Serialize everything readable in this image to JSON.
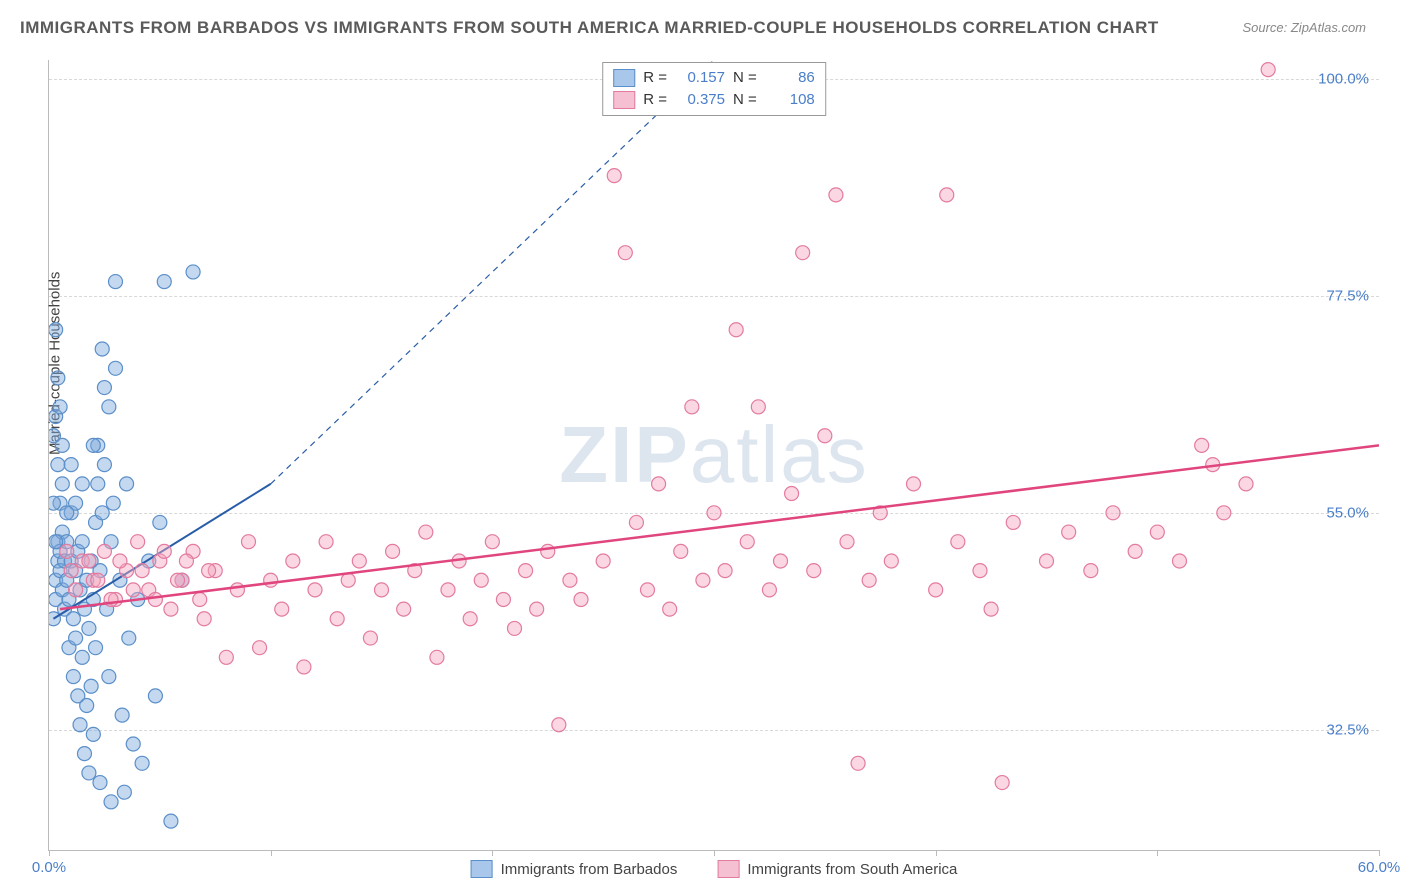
{
  "title": "IMMIGRANTS FROM BARBADOS VS IMMIGRANTS FROM SOUTH AMERICA MARRIED-COUPLE HOUSEHOLDS CORRELATION CHART",
  "source": "Source: ZipAtlas.com",
  "ylabel": "Married-couple Households",
  "watermark_bold": "ZIP",
  "watermark_rest": "atlas",
  "chart": {
    "type": "scatter",
    "xlim": [
      0,
      60
    ],
    "ylim": [
      20,
      102
    ],
    "xticks": [
      0,
      10,
      20,
      30,
      40,
      50,
      60
    ],
    "xtick_labels_shown": {
      "0": "0.0%",
      "60": "60.0%"
    },
    "yticks": [
      32.5,
      55.0,
      77.5,
      100.0
    ],
    "ytick_labels": [
      "32.5%",
      "55.0%",
      "77.5%",
      "100.0%"
    ],
    "grid_color": "#d8d8d8",
    "background_color": "#ffffff",
    "marker_radius": 7,
    "marker_stroke_width": 1.2,
    "series": [
      {
        "name": "Immigrants from Barbados",
        "short": "barbados",
        "fill": "rgba(125,168,220,0.45)",
        "stroke": "#5b8fc9",
        "swatch_fill": "#a9c7ea",
        "swatch_stroke": "#5b8fc9",
        "R": "0.157",
        "N": "86",
        "trend": {
          "x1": 0.2,
          "y1": 44,
          "x2": 10,
          "y2": 58,
          "dashed_ext": {
            "x2": 30,
            "y2": 102
          },
          "color": "#2a5da8",
          "width": 2
        },
        "points": [
          [
            0.2,
            44
          ],
          [
            0.3,
            48
          ],
          [
            0.4,
            50
          ],
          [
            0.4,
            52
          ],
          [
            0.3,
            46
          ],
          [
            0.5,
            49
          ],
          [
            0.5,
            51
          ],
          [
            0.6,
            47
          ],
          [
            0.6,
            53
          ],
          [
            0.7,
            45
          ],
          [
            0.7,
            50
          ],
          [
            0.8,
            48
          ],
          [
            0.8,
            52
          ],
          [
            0.9,
            41
          ],
          [
            0.9,
            46
          ],
          [
            1.0,
            50
          ],
          [
            1.0,
            55
          ],
          [
            1.1,
            44
          ],
          [
            1.1,
            38
          ],
          [
            1.2,
            42
          ],
          [
            1.2,
            49
          ],
          [
            1.3,
            36
          ],
          [
            1.3,
            51
          ],
          [
            1.4,
            47
          ],
          [
            1.4,
            33
          ],
          [
            1.5,
            40
          ],
          [
            1.5,
            52
          ],
          [
            1.6,
            45
          ],
          [
            1.6,
            30
          ],
          [
            1.7,
            35
          ],
          [
            1.7,
            48
          ],
          [
            1.8,
            43
          ],
          [
            1.8,
            28
          ],
          [
            1.9,
            50
          ],
          [
            1.9,
            37
          ],
          [
            2.0,
            46
          ],
          [
            2.0,
            32
          ],
          [
            2.1,
            54
          ],
          [
            2.1,
            41
          ],
          [
            2.2,
            58
          ],
          [
            2.2,
            62
          ],
          [
            2.3,
            49
          ],
          [
            2.3,
            27
          ],
          [
            2.4,
            55
          ],
          [
            2.4,
            72
          ],
          [
            2.5,
            60
          ],
          [
            2.5,
            68
          ],
          [
            2.6,
            45
          ],
          [
            2.7,
            38
          ],
          [
            2.7,
            66
          ],
          [
            2.8,
            52
          ],
          [
            2.8,
            25
          ],
          [
            2.9,
            56
          ],
          [
            3.0,
            70
          ],
          [
            3.0,
            79
          ],
          [
            3.2,
            48
          ],
          [
            3.3,
            34
          ],
          [
            3.4,
            26
          ],
          [
            3.5,
            58
          ],
          [
            3.6,
            42
          ],
          [
            3.8,
            31
          ],
          [
            4.0,
            46
          ],
          [
            4.2,
            29
          ],
          [
            4.5,
            50
          ],
          [
            4.8,
            36
          ],
          [
            5.0,
            54
          ],
          [
            5.2,
            79
          ],
          [
            5.5,
            23
          ],
          [
            6.0,
            48
          ],
          [
            6.5,
            80
          ],
          [
            0.3,
            65
          ],
          [
            0.4,
            60
          ],
          [
            0.5,
            56
          ],
          [
            0.6,
            58
          ],
          [
            0.3,
            74
          ],
          [
            0.4,
            69
          ],
          [
            0.2,
            63
          ],
          [
            0.5,
            66
          ],
          [
            1.0,
            60
          ],
          [
            1.2,
            56
          ],
          [
            1.5,
            58
          ],
          [
            2.0,
            62
          ],
          [
            0.8,
            55
          ],
          [
            0.6,
            62
          ],
          [
            0.3,
            52
          ],
          [
            0.2,
            56
          ]
        ]
      },
      {
        "name": "Immigrants from South America",
        "short": "south-america",
        "fill": "rgba(244,166,190,0.45)",
        "stroke": "#e37ba0",
        "swatch_fill": "#f5c0d1",
        "swatch_stroke": "#e37ba0",
        "R": "0.375",
        "N": "108",
        "trend": {
          "x1": 0.5,
          "y1": 45,
          "x2": 60,
          "y2": 62,
          "color": "#e0457e",
          "width": 2.5
        },
        "points": [
          [
            1.0,
            49
          ],
          [
            1.5,
            50
          ],
          [
            2.0,
            48
          ],
          [
            2.5,
            51
          ],
          [
            3.0,
            46
          ],
          [
            3.5,
            49
          ],
          [
            4.0,
            52
          ],
          [
            4.5,
            47
          ],
          [
            5.0,
            50
          ],
          [
            5.5,
            45
          ],
          [
            6.0,
            48
          ],
          [
            6.5,
            51
          ],
          [
            7.0,
            44
          ],
          [
            7.5,
            49
          ],
          [
            8.0,
            40
          ],
          [
            8.5,
            47
          ],
          [
            9.0,
            52
          ],
          [
            9.5,
            41
          ],
          [
            10.0,
            48
          ],
          [
            10.5,
            45
          ],
          [
            11.0,
            50
          ],
          [
            11.5,
            39
          ],
          [
            12.0,
            47
          ],
          [
            12.5,
            52
          ],
          [
            13.0,
            44
          ],
          [
            13.5,
            48
          ],
          [
            14.0,
            50
          ],
          [
            14.5,
            42
          ],
          [
            15.0,
            47
          ],
          [
            15.5,
            51
          ],
          [
            16.0,
            45
          ],
          [
            16.5,
            49
          ],
          [
            17.0,
            53
          ],
          [
            17.5,
            40
          ],
          [
            18.0,
            47
          ],
          [
            18.5,
            50
          ],
          [
            19.0,
            44
          ],
          [
            19.5,
            48
          ],
          [
            20.0,
            52
          ],
          [
            20.5,
            46
          ],
          [
            21.0,
            43
          ],
          [
            21.5,
            49
          ],
          [
            22.0,
            45
          ],
          [
            22.5,
            51
          ],
          [
            23.0,
            33
          ],
          [
            23.5,
            48
          ],
          [
            24.0,
            46
          ],
          [
            25.0,
            50
          ],
          [
            25.5,
            90
          ],
          [
            26.0,
            82
          ],
          [
            26.5,
            54
          ],
          [
            27.0,
            47
          ],
          [
            27.5,
            58
          ],
          [
            28.0,
            45
          ],
          [
            28.5,
            51
          ],
          [
            29.0,
            66
          ],
          [
            29.5,
            48
          ],
          [
            30.0,
            55
          ],
          [
            30.5,
            49
          ],
          [
            31.0,
            74
          ],
          [
            31.5,
            52
          ],
          [
            32.0,
            66
          ],
          [
            32.5,
            47
          ],
          [
            33.0,
            50
          ],
          [
            33.5,
            57
          ],
          [
            34.0,
            82
          ],
          [
            34.5,
            49
          ],
          [
            35.0,
            63
          ],
          [
            35.5,
            88
          ],
          [
            36.0,
            52
          ],
          [
            36.5,
            29
          ],
          [
            37.0,
            48
          ],
          [
            37.5,
            55
          ],
          [
            38.0,
            50
          ],
          [
            39.0,
            58
          ],
          [
            40.0,
            47
          ],
          [
            40.5,
            88
          ],
          [
            41.0,
            52
          ],
          [
            42.0,
            49
          ],
          [
            42.5,
            45
          ],
          [
            43.0,
            27
          ],
          [
            43.5,
            54
          ],
          [
            45.0,
            50
          ],
          [
            46.0,
            53
          ],
          [
            47.0,
            49
          ],
          [
            48.0,
            55
          ],
          [
            49.0,
            51
          ],
          [
            50.0,
            53
          ],
          [
            51.0,
            50
          ],
          [
            52.0,
            62
          ],
          [
            52.5,
            60
          ],
          [
            53.0,
            55
          ],
          [
            54.0,
            58
          ],
          [
            55.0,
            101
          ],
          [
            0.8,
            51
          ],
          [
            1.2,
            47
          ],
          [
            1.8,
            50
          ],
          [
            2.2,
            48
          ],
          [
            2.8,
            46
          ],
          [
            3.2,
            50
          ],
          [
            3.8,
            47
          ],
          [
            4.2,
            49
          ],
          [
            4.8,
            46
          ],
          [
            5.2,
            51
          ],
          [
            5.8,
            48
          ],
          [
            6.2,
            50
          ],
          [
            6.8,
            46
          ],
          [
            7.2,
            49
          ]
        ]
      }
    ]
  },
  "legend_labels": {
    "R": "R =",
    "N": "N ="
  }
}
